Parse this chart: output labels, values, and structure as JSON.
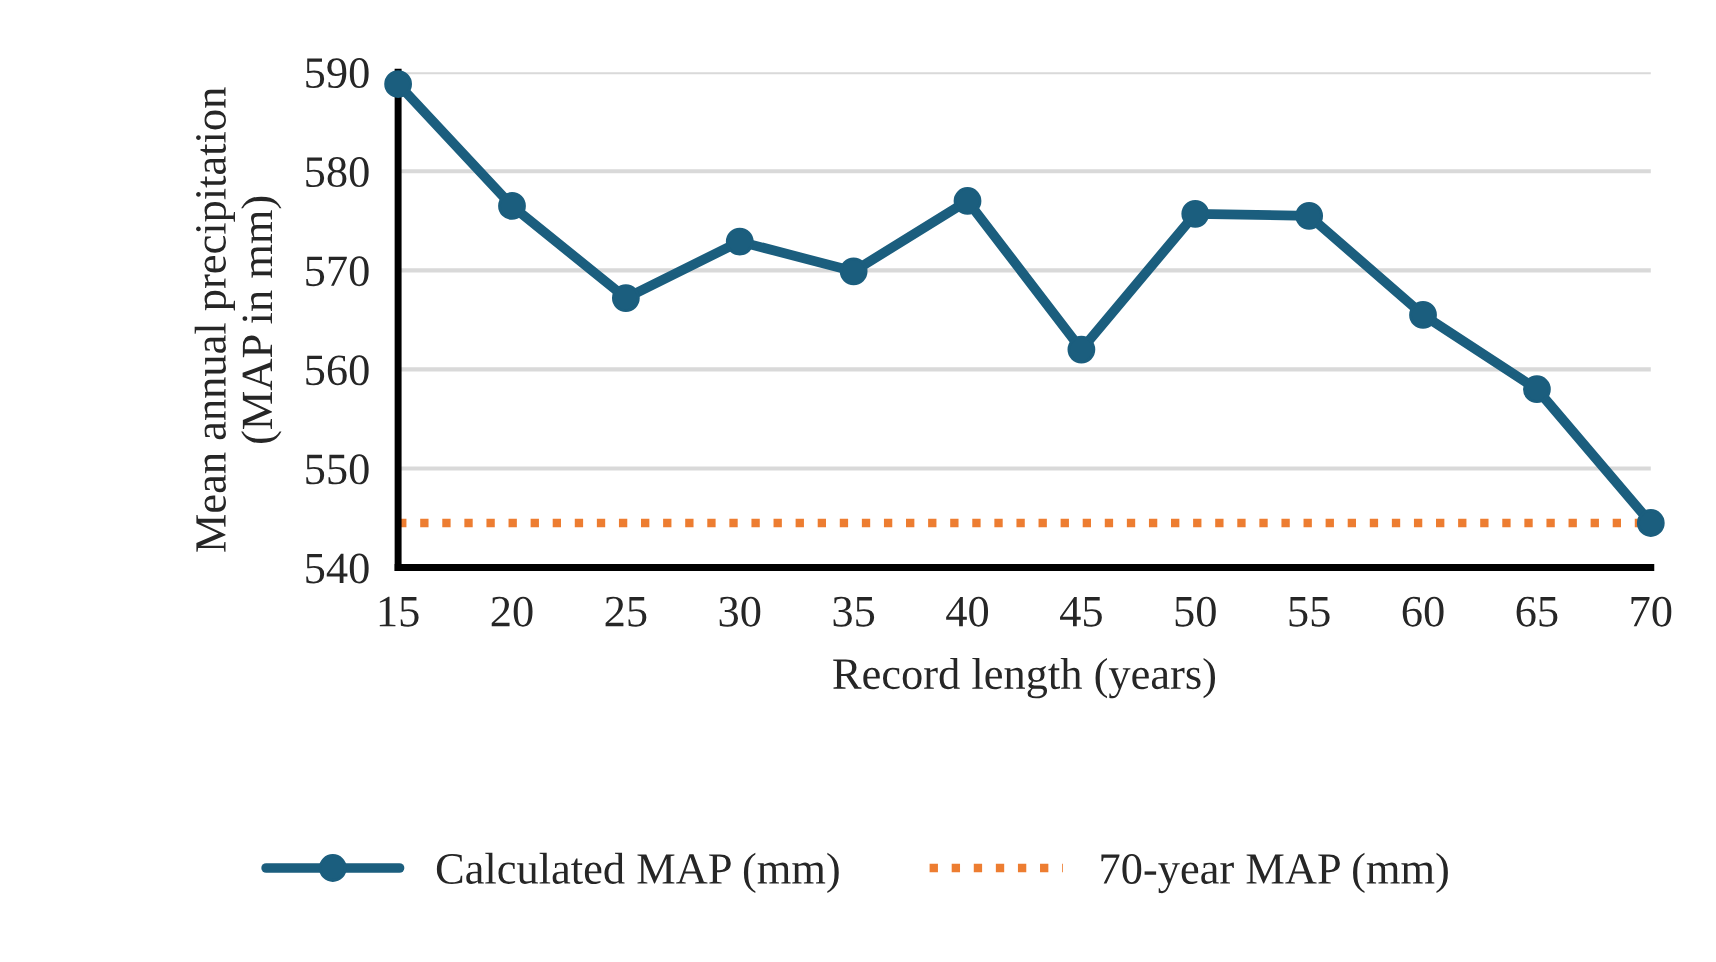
{
  "chart_data": {
    "type": "line",
    "xlabel": "Record length (years)",
    "ylabel": "Mean annual precipitation\n(MAP in mm)",
    "x": [
      15,
      20,
      25,
      30,
      35,
      40,
      45,
      50,
      55,
      60,
      65,
      70
    ],
    "series": [
      {
        "name": "Calculated MAP (mm)",
        "color": "#1b5e7e",
        "values": [
          588.8,
          576.5,
          567.2,
          572.9,
          569.9,
          577.0,
          562.0,
          575.7,
          575.5,
          565.5,
          558.0,
          544.5
        ]
      }
    ],
    "ref_lines": [
      {
        "axis": "y",
        "value": 544.5,
        "label": "70-year MAP (mm)",
        "color": "#ed7d31",
        "line_style": "dotted"
      }
    ],
    "xlim": [
      15,
      70
    ],
    "xticks": [
      15,
      20,
      25,
      30,
      35,
      40,
      45,
      50,
      55,
      60,
      65,
      70
    ],
    "ylim": [
      540,
      590
    ],
    "yticks": [
      540,
      550,
      560,
      570,
      580,
      590
    ],
    "grid": "y",
    "legend": "bottom",
    "marker": "circle",
    "line_style": "solid"
  }
}
